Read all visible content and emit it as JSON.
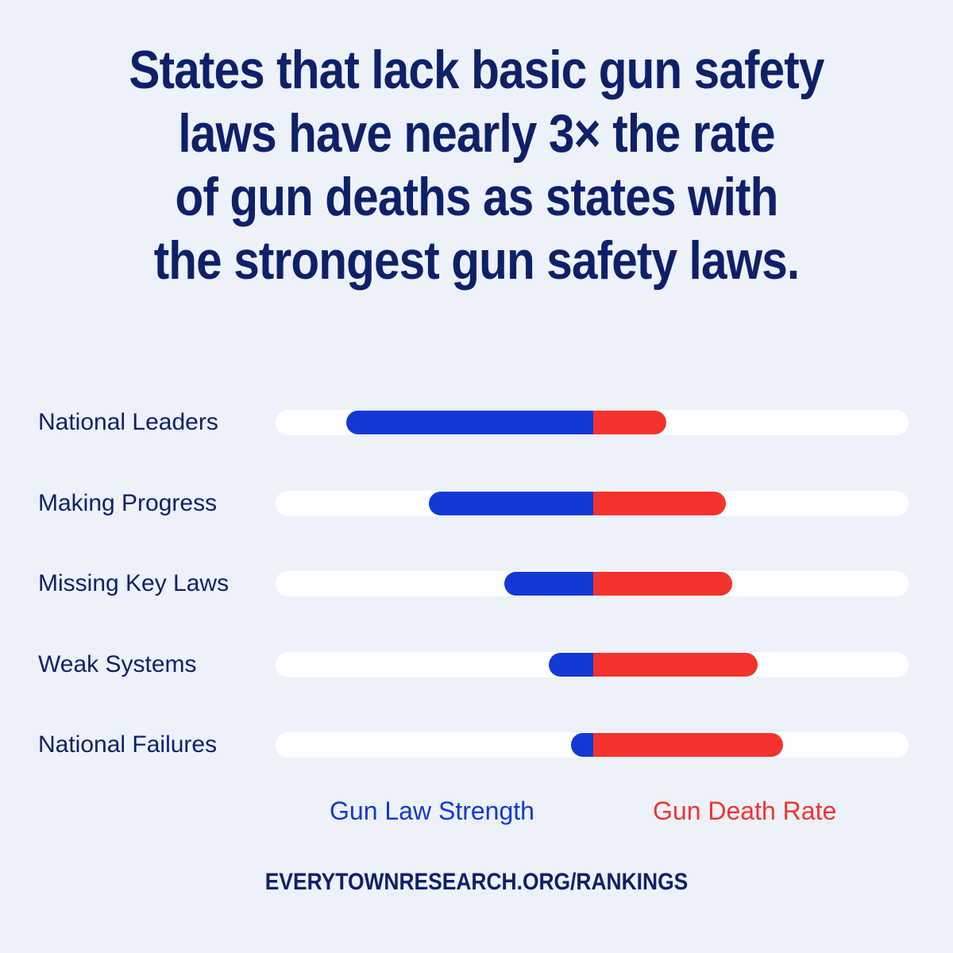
{
  "headline": {
    "lines": [
      "States that lack basic gun safety",
      "laws have nearly 3× the rate",
      "of gun deaths as states with",
      "the strongest gun safety laws."
    ]
  },
  "chart_data": {
    "type": "bar",
    "categories": [
      "National Leaders",
      "Making Progress",
      "Missing Key Laws",
      "Weak Systems",
      "National Failures"
    ],
    "series": [
      {
        "name": "Gun Law Strength",
        "values": [
          39,
          26,
          14,
          7,
          3.5
        ],
        "color": "#1239d6",
        "direction": "left"
      },
      {
        "name": "Gun Death Rate",
        "values": [
          11.5,
          21,
          22,
          26,
          30
        ],
        "color": "#f5332e",
        "direction": "right"
      }
    ],
    "xlim": [
      -50,
      50
    ],
    "legend": "bottom",
    "grid": false
  },
  "legend": {
    "law_label": "Gun Law Strength",
    "death_label": "Gun Death Rate"
  },
  "footer": {
    "url": "EVERYTOWNRESEARCH.ORG/RANKINGS"
  },
  "colors": {
    "background": "#edf2fa",
    "navy": "#0e2068",
    "law": "#1239d6",
    "death": "#f5332e",
    "track": "#ffffff"
  }
}
